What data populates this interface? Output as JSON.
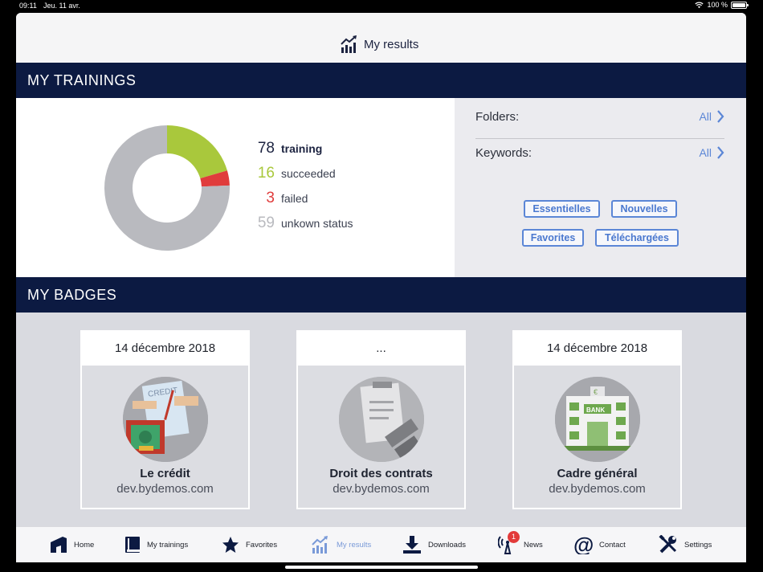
{
  "status": {
    "time": "09:11",
    "date": "Jeu. 11 avr.",
    "battery": "100 %"
  },
  "header": {
    "title": "My results",
    "icon": "chart-up-icon"
  },
  "trainings": {
    "heading": "MY TRAININGS",
    "total": {
      "value": "78",
      "label": "training"
    },
    "succeeded": {
      "value": "16",
      "label": "succeeded",
      "color": "#a9c83c"
    },
    "failed": {
      "value": "3",
      "label": "failed",
      "color": "#e03c3c"
    },
    "unknown": {
      "value": "59",
      "label": "unkown status",
      "color": "#b9babf"
    },
    "folders": {
      "label": "Folders:",
      "value": "All"
    },
    "keywords": {
      "label": "Keywords:",
      "value": "All"
    },
    "tags": [
      "Essentielles",
      "Nouvelles",
      "Favorites",
      "Téléchargées"
    ]
  },
  "badges": {
    "heading": "MY BADGES",
    "items": [
      {
        "date": "14 décembre 2018",
        "name": "Le crédit",
        "site": "dev.bydemos.com"
      },
      {
        "date": "...",
        "name": "Droit des contrats",
        "site": "dev.bydemos.com"
      },
      {
        "date": "14 décembre 2018",
        "name": "Cadre général",
        "site": "dev.bydemos.com"
      }
    ]
  },
  "tabs": [
    {
      "label": "Home",
      "icon": "home-icon"
    },
    {
      "label": "My trainings",
      "icon": "book-icon"
    },
    {
      "label": "Favorites",
      "icon": "star-icon"
    },
    {
      "label": "My results",
      "icon": "chart-up-icon",
      "active": true
    },
    {
      "label": "Downloads",
      "icon": "download-icon"
    },
    {
      "label": "News",
      "icon": "broadcast-icon",
      "badge": "1"
    },
    {
      "label": "Contact",
      "icon": "at-icon"
    },
    {
      "label": "Settings",
      "icon": "tools-icon"
    }
  ],
  "colors": {
    "navy": "#0c1a42",
    "accent": "#5b86d6"
  }
}
